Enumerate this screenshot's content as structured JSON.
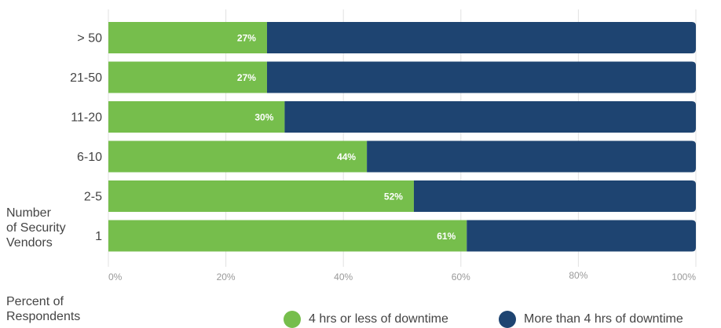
{
  "chart_data": {
    "type": "bar",
    "orientation": "horizontal",
    "stacked": true,
    "categories": [
      "> 50",
      "21-50",
      "11-20",
      "6-10",
      "2-5",
      "1"
    ],
    "series": [
      {
        "name": "4 hrs or less of downtime",
        "values": [
          27,
          27,
          30,
          44,
          52,
          61
        ],
        "color": "#76BE4C",
        "labels": [
          "27%",
          "27%",
          "30%",
          "44%",
          "52%",
          "61%"
        ]
      },
      {
        "name": "More than 4 hrs of downtime",
        "values": [
          73,
          73,
          70,
          56,
          48,
          39
        ],
        "color": "#1E4471"
      }
    ],
    "xlim": [
      0,
      100
    ],
    "xticks": [
      "0%",
      "20%",
      "40%",
      "60%",
      "80%",
      "100%"
    ],
    "ylabel_lines": [
      "Number",
      "of Security",
      "Vendors"
    ],
    "xlabel_lines": [
      "Percent of",
      "Respondents"
    ],
    "grid": true,
    "legend_position": "bottom-right"
  }
}
